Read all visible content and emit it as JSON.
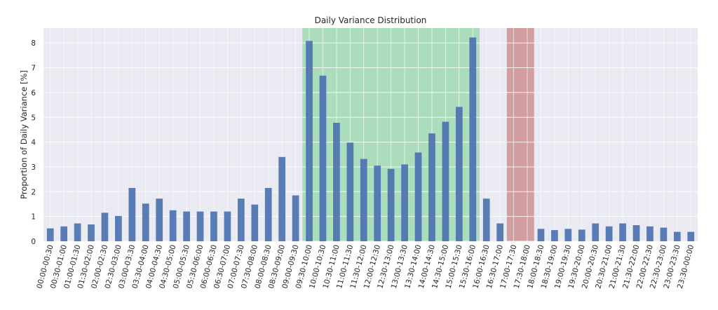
{
  "chart_data": {
    "type": "bar",
    "title": "Daily Variance Distribution",
    "xlabel": "",
    "ylabel": "Proportion of Daily Variance [%]",
    "ylim": [
      0,
      8.6
    ],
    "yticks": [
      0,
      1,
      2,
      3,
      4,
      5,
      6,
      7,
      8
    ],
    "grid": true,
    "bar_color": "#4c72b0",
    "plot_background": "#eaeaf2",
    "highlight_regions": [
      {
        "from": "09:30-10:00",
        "to": "15:30-16:00",
        "color": "#a8dbb8"
      },
      {
        "from": "17:00-17:30",
        "to": "17:30-18:00",
        "color": "#d29a9a"
      }
    ],
    "categories": [
      "00:00-00:30",
      "00:30-01:00",
      "01:00-01:30",
      "01:30-02:00",
      "02:00-02:30",
      "02:30-03:00",
      "03:00-03:30",
      "03:30-04:00",
      "04:00-04:30",
      "04:30-05:00",
      "05:00-05:30",
      "05:30-06:00",
      "06:00-06:30",
      "06:30-07:00",
      "07:00-07:30",
      "07:30-08:00",
      "08:00-08:30",
      "08:30-09:00",
      "09:00-09:30",
      "09:30-10:00",
      "10:00-10:30",
      "10:30-11:00",
      "11:00-11:30",
      "11:30-12:00",
      "12:00-12:30",
      "12:30-13:00",
      "13:00-13:30",
      "13:30-14:00",
      "14:00-14:30",
      "14:30-15:00",
      "15:00-15:30",
      "15:30-16:00",
      "16:00-16:30",
      "16:30-17:00",
      "17:00-17:30",
      "17:30-18:00",
      "18:00-18:30",
      "18:30-19:00",
      "19:00-19:30",
      "19:30-20:00",
      "20:00-20:30",
      "20:30-21:00",
      "21:00-21:30",
      "21:30-22:00",
      "22:00-22:30",
      "22:30-23:00",
      "23:00-23:30",
      "23:30-00:00"
    ],
    "values": [
      0.52,
      0.6,
      0.72,
      0.68,
      1.15,
      1.02,
      2.15,
      1.52,
      1.72,
      1.25,
      1.2,
      1.2,
      1.2,
      1.2,
      1.72,
      1.48,
      2.15,
      3.4,
      1.85,
      8.08,
      6.68,
      4.78,
      3.98,
      3.32,
      3.05,
      2.92,
      3.1,
      3.58,
      4.35,
      4.82,
      5.42,
      8.22,
      1.72,
      0.72,
      null,
      null,
      0.5,
      0.45,
      0.5,
      0.47,
      0.72,
      0.6,
      0.72,
      0.65,
      0.6,
      0.55,
      0.38,
      0.38
    ]
  }
}
